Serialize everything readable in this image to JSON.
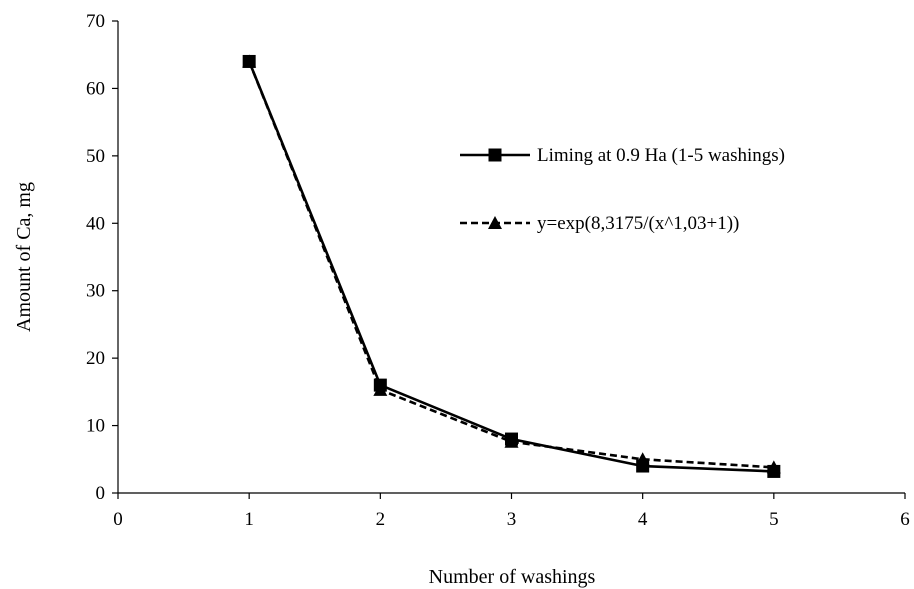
{
  "chart_data": {
    "type": "line",
    "title": "",
    "xlabel": "Number of washings",
    "ylabel": "Amount of Ca, mg",
    "xlim": [
      0,
      6
    ],
    "ylim": [
      0,
      70
    ],
    "xticks": [
      0,
      1,
      2,
      3,
      4,
      5,
      6
    ],
    "yticks": [
      0,
      10,
      20,
      30,
      40,
      50,
      60,
      70
    ],
    "grid": false,
    "legend_position": "right",
    "series": [
      {
        "name": "Liming at 0.9 Ha (1-5 washings)",
        "x": [
          1,
          2,
          3,
          4,
          5
        ],
        "y": [
          64,
          16,
          8,
          4,
          3.2
        ],
        "line": "solid",
        "marker": "square",
        "color": "#000000"
      },
      {
        "name": "y=exp(8,3175/(x^1,03+1))",
        "x": [
          1,
          2,
          3,
          4,
          5
        ],
        "y": [
          64,
          15.3,
          7.6,
          5.0,
          3.8
        ],
        "line": "dashed",
        "marker": "triangle",
        "color": "#000000"
      }
    ]
  }
}
